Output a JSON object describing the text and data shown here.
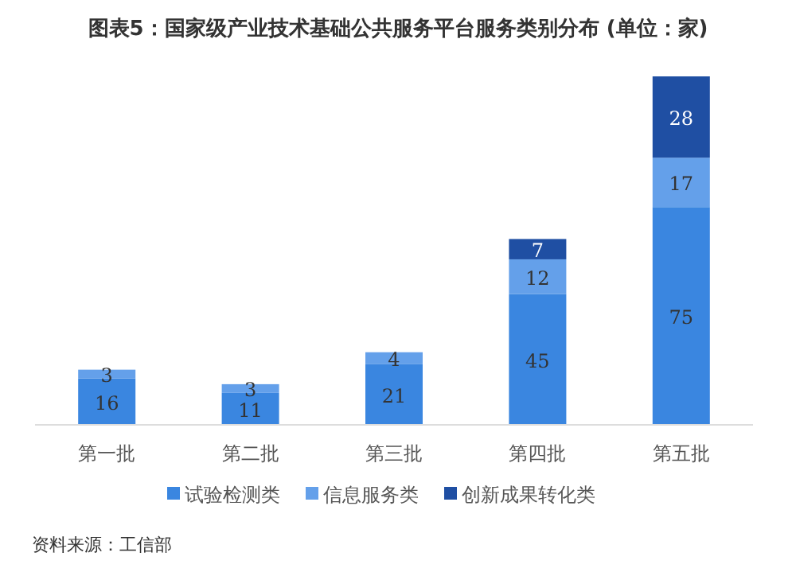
{
  "chart_data": {
    "type": "bar",
    "title": "图表5：国家级产业技术基础公共服务平台服务类别分布 (单位：家)",
    "categories": [
      "第一批",
      "第二批",
      "第三批",
      "第四批",
      "第五批"
    ],
    "stacked": true,
    "data_labels": true,
    "legend": "bottom",
    "series": [
      {
        "name": "试验检测类",
        "color": "#3a86e0",
        "values": [
          16,
          11,
          21,
          45,
          75
        ]
      },
      {
        "name": "信息服务类",
        "color": "#64a0ea",
        "values": [
          3,
          3,
          4,
          12,
          17
        ]
      },
      {
        "name": "创新成果转化类",
        "color": "#1f4fa3",
        "values": [
          null,
          null,
          null,
          7,
          28
        ]
      }
    ],
    "annotations": [
      "资料来源：工信部"
    ]
  }
}
